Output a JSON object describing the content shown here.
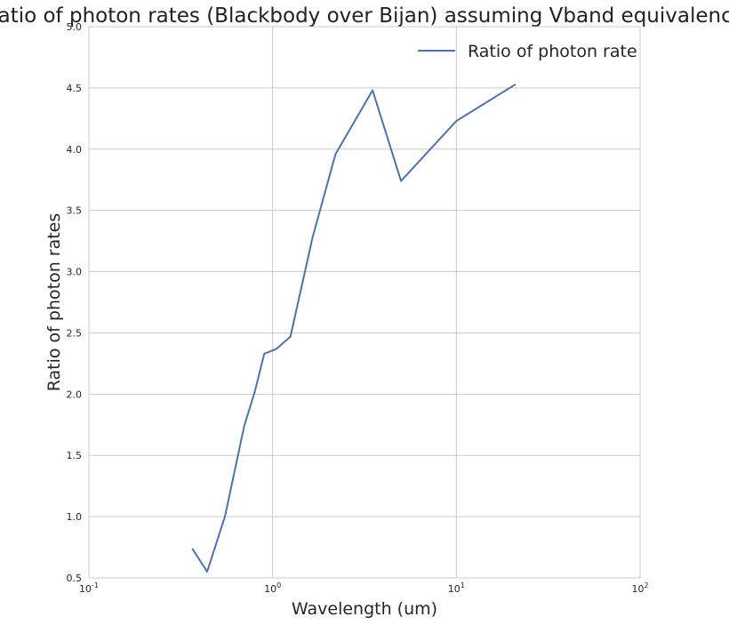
{
  "chart_data": {
    "type": "line",
    "title": "Ratio of photon rates (Blackbody over Bijan) assuming Vband equivalence",
    "xlabel": "Wavelength (um)",
    "ylabel": "Ratio of photon rates",
    "xscale": "log",
    "xlim": [
      0.1,
      100
    ],
    "ylim": [
      0.5,
      5.0
    ],
    "xticks": [
      {
        "value": 0.1,
        "base": "10",
        "exp": "-1"
      },
      {
        "value": 1,
        "base": "10",
        "exp": "0"
      },
      {
        "value": 10,
        "base": "10",
        "exp": "1"
      },
      {
        "value": 100,
        "base": "10",
        "exp": "2"
      }
    ],
    "yticks": [
      "0.5",
      "1.0",
      "1.5",
      "2.0",
      "2.5",
      "3.0",
      "3.5",
      "4.0",
      "4.5",
      "5.0"
    ],
    "grid": true,
    "legend_position": "top-right",
    "series": [
      {
        "name": "Ratio of photon rate",
        "color": "#4c72b0",
        "x": [
          0.365,
          0.44,
          0.55,
          0.7,
          0.8,
          0.9,
          1.05,
          1.25,
          1.65,
          2.2,
          3.5,
          5.0,
          10.0,
          21.0
        ],
        "y": [
          0.74,
          0.55,
          1.0,
          1.74,
          2.02,
          2.33,
          2.37,
          2.47,
          3.28,
          3.96,
          4.48,
          3.74,
          4.23,
          4.53
        ]
      }
    ]
  }
}
